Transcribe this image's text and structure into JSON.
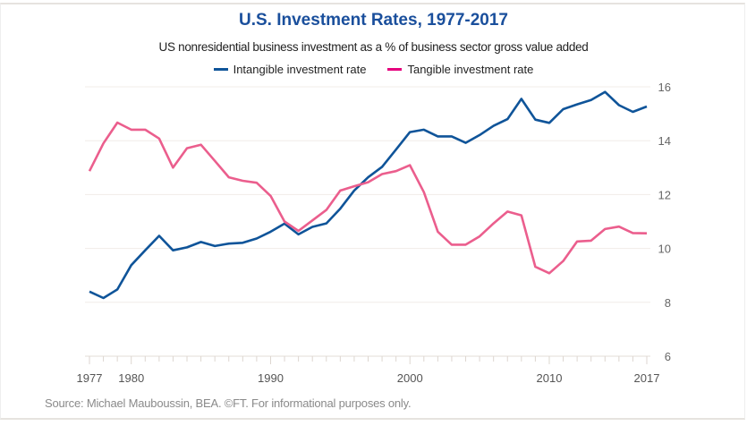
{
  "chart_data": {
    "type": "line",
    "title": "U.S. Investment Rates, 1977-2017",
    "subtitle": "US nonresidential business investment as a % of business sector gross value added",
    "xlabel": "",
    "ylabel": "",
    "xlim": [
      1977,
      2017
    ],
    "ylim": [
      6,
      16
    ],
    "yticks": [
      6,
      8,
      10,
      12,
      14,
      16
    ],
    "xticks": [
      1977,
      1980,
      1990,
      2000,
      2010,
      2017
    ],
    "grid": true,
    "legend": "top-center",
    "x": [
      1977,
      1978,
      1979,
      1980,
      1981,
      1982,
      1983,
      1984,
      1985,
      1986,
      1987,
      1988,
      1989,
      1990,
      1991,
      1992,
      1993,
      1994,
      1995,
      1996,
      1997,
      1998,
      1999,
      2000,
      2001,
      2002,
      2003,
      2004,
      2005,
      2006,
      2007,
      2008,
      2009,
      2010,
      2011,
      2012,
      2013,
      2014,
      2015,
      2016,
      2017
    ],
    "series": [
      {
        "name": "Intangible investment rate",
        "color": "#0f5499",
        "values": [
          8.4,
          8.16,
          8.48,
          9.38,
          9.93,
          10.47,
          9.93,
          10.04,
          10.24,
          10.09,
          10.18,
          10.21,
          10.37,
          10.62,
          10.92,
          10.52,
          10.8,
          10.93,
          11.48,
          12.15,
          12.64,
          13.03,
          13.67,
          14.32,
          14.41,
          14.16,
          14.16,
          13.92,
          14.21,
          14.55,
          14.8,
          15.55,
          14.78,
          14.66,
          15.17,
          15.35,
          15.51,
          15.81,
          15.32,
          15.07,
          15.27
        ]
      },
      {
        "name": "Tangible investment rate",
        "color": "#eb5e8d",
        "legend_color": "#e5007d",
        "values": [
          12.87,
          13.9,
          14.67,
          14.41,
          14.41,
          14.08,
          13.0,
          13.72,
          13.85,
          13.25,
          12.64,
          12.51,
          12.44,
          11.95,
          11.0,
          10.65,
          11.04,
          11.43,
          12.15,
          12.31,
          12.46,
          12.76,
          12.87,
          13.09,
          12.09,
          10.62,
          10.14,
          10.14,
          10.45,
          10.93,
          11.37,
          11.23,
          9.32,
          9.08,
          9.53,
          10.26,
          10.29,
          10.72,
          10.81,
          10.57,
          10.56
        ]
      }
    ]
  },
  "source": "Source: Michael Mauboussin, BEA. ©FT. For informational purposes only."
}
